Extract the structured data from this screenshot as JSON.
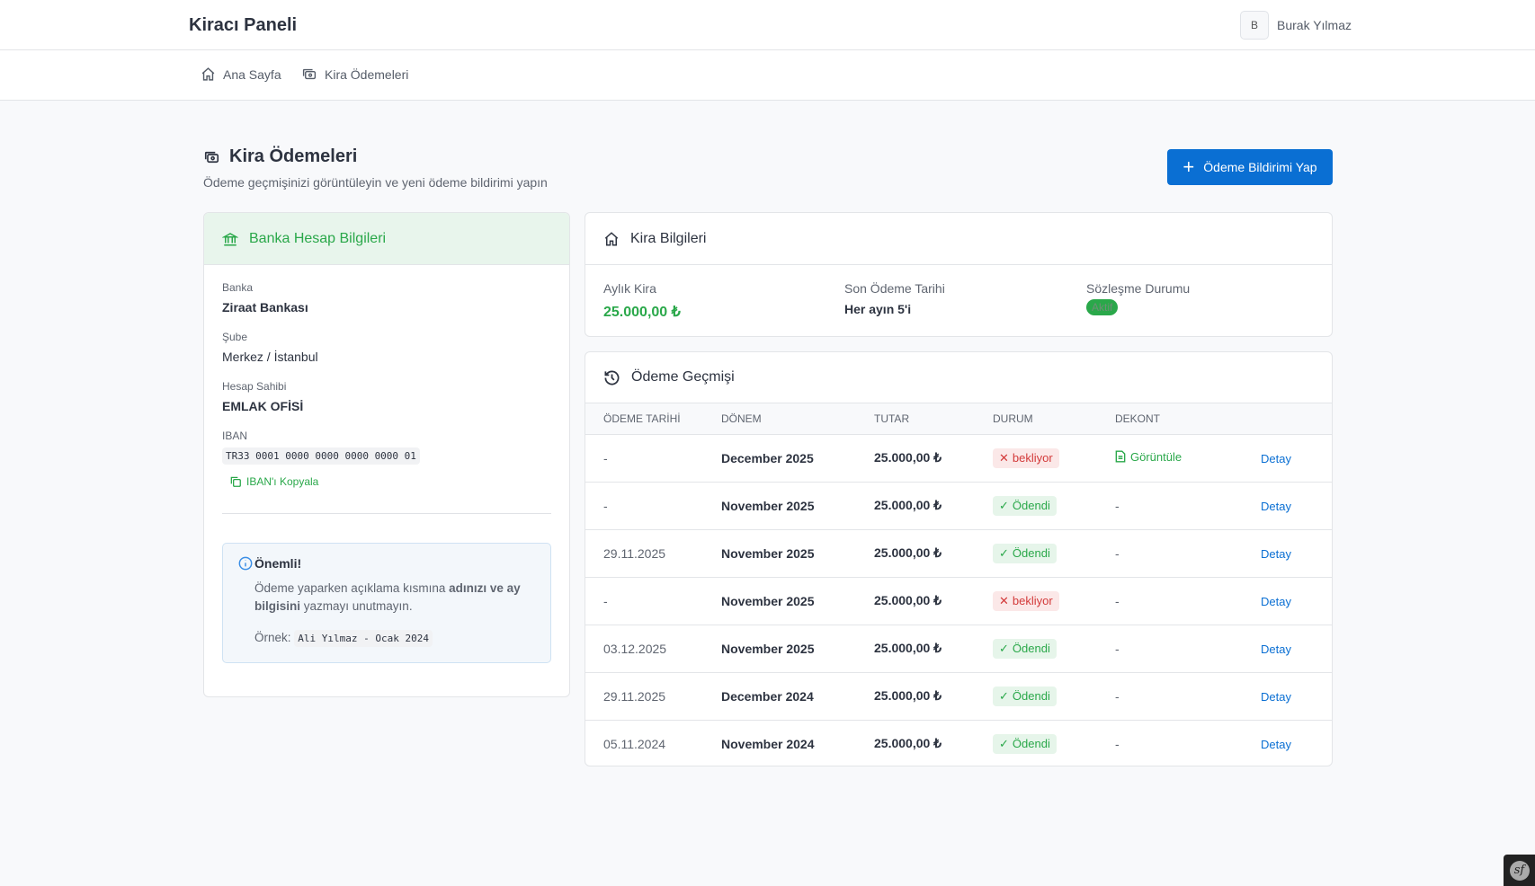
{
  "header": {
    "brand": "Kiracı Paneli",
    "avatar_initial": "B",
    "user_name": "Burak Yılmaz"
  },
  "nav": [
    {
      "label": "Ana Sayfa",
      "icon": "home-icon"
    },
    {
      "label": "Kira Ödemeleri",
      "icon": "money-icon"
    }
  ],
  "page": {
    "title": "Kira Ödemeleri",
    "subtitle": "Ödeme geçmişinizi görüntüleyin ve yeni ödeme bildirimi yapın",
    "action_label": "Ödeme Bildirimi Yap"
  },
  "bank": {
    "title": "Banka Hesap Bilgileri",
    "bank_label": "Banka",
    "bank_value": "Ziraat Bankası",
    "branch_label": "Şube",
    "branch_value": "Merkez / İstanbul",
    "owner_label": "Hesap Sahibi",
    "owner_value": "EMLAK OFİSİ",
    "iban_label": "IBAN",
    "iban_value": "TR33 0001 0000 0000 0000 0000 01",
    "copy_label": "IBAN'ı Kopyala",
    "notice": {
      "title": "Önemli!",
      "text_pre": "Ödeme yaparken açıklama kısmına ",
      "text_bold1": "adınızı ve ay bilgisini",
      "text_post": " yazmayı unutmayın.",
      "example_label": "Örnek:",
      "example_value": "Ali Yılmaz - Ocak 2024"
    }
  },
  "rent": {
    "title": "Kira Bilgileri",
    "monthly_label": "Aylık Kira",
    "monthly_value": "25.000,00 ₺",
    "due_label": "Son Ödeme Tarihi",
    "due_value": "Her ayın 5'i",
    "contract_label": "Sözleşme Durumu",
    "contract_value": "Aktif"
  },
  "history": {
    "title": "Ödeme Geçmişi",
    "columns": [
      "ÖDEME TARİHİ",
      "DÖNEM",
      "TUTAR",
      "DURUM",
      "DEKONT",
      ""
    ],
    "rows": [
      {
        "date": "-",
        "period": "December 2025",
        "amount": "25.000,00 ₺",
        "status": "bekliyor",
        "receipt": "Görüntüle",
        "action": "Detay"
      },
      {
        "date": "-",
        "period": "November 2025",
        "amount": "25.000,00 ₺",
        "status": "Ödendi",
        "receipt": "-",
        "action": "Detay"
      },
      {
        "date": "29.11.2025",
        "period": "November 2025",
        "amount": "25.000,00 ₺",
        "status": "Ödendi",
        "receipt": "-",
        "action": "Detay"
      },
      {
        "date": "-",
        "period": "November 2025",
        "amount": "25.000,00 ₺",
        "status": "bekliyor",
        "receipt": "-",
        "action": "Detay"
      },
      {
        "date": "03.12.2025",
        "period": "November 2025",
        "amount": "25.000,00 ₺",
        "status": "Ödendi",
        "receipt": "-",
        "action": "Detay"
      },
      {
        "date": "29.11.2025",
        "period": "December 2024",
        "amount": "25.000,00 ₺",
        "status": "Ödendi",
        "receipt": "-",
        "action": "Detay"
      },
      {
        "date": "05.11.2024",
        "period": "November 2024",
        "amount": "25.000,00 ₺",
        "status": "Ödendi",
        "receipt": "-",
        "action": "Detay"
      }
    ]
  },
  "colors": {
    "primary": "#0a6fd3",
    "success": "#2aa84a",
    "danger": "#d33a3a"
  }
}
